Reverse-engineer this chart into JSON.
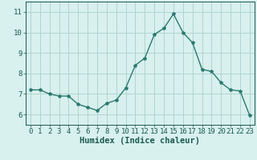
{
  "x": [
    0,
    1,
    2,
    3,
    4,
    5,
    6,
    7,
    8,
    9,
    10,
    11,
    12,
    13,
    14,
    15,
    16,
    17,
    18,
    19,
    20,
    21,
    22,
    23
  ],
  "y": [
    7.2,
    7.2,
    7.0,
    6.9,
    6.9,
    6.5,
    6.35,
    6.2,
    6.55,
    6.7,
    7.3,
    8.4,
    8.75,
    9.9,
    10.2,
    10.9,
    10.0,
    9.5,
    8.2,
    8.1,
    7.55,
    7.2,
    7.15,
    5.95
  ],
  "line_color": "#2a7a6e",
  "marker": "*",
  "marker_size": 3,
  "bg_color": "#d8f0ee",
  "grid_color": "#b0d5d0",
  "xlabel": "Humidex (Indice chaleur)",
  "xlim": [
    -0.5,
    23.5
  ],
  "ylim": [
    5.5,
    11.5
  ],
  "yticks": [
    6,
    7,
    8,
    9,
    10,
    11
  ],
  "xticks": [
    0,
    1,
    2,
    3,
    4,
    5,
    6,
    7,
    8,
    9,
    10,
    11,
    12,
    13,
    14,
    15,
    16,
    17,
    18,
    19,
    20,
    21,
    22,
    23
  ],
  "tick_color": "#1a5a50",
  "tick_fontsize": 6.5,
  "xlabel_fontsize": 7.5,
  "axis_color": "#1a5a50",
  "bottom_bar_color": "#2a7a6e"
}
